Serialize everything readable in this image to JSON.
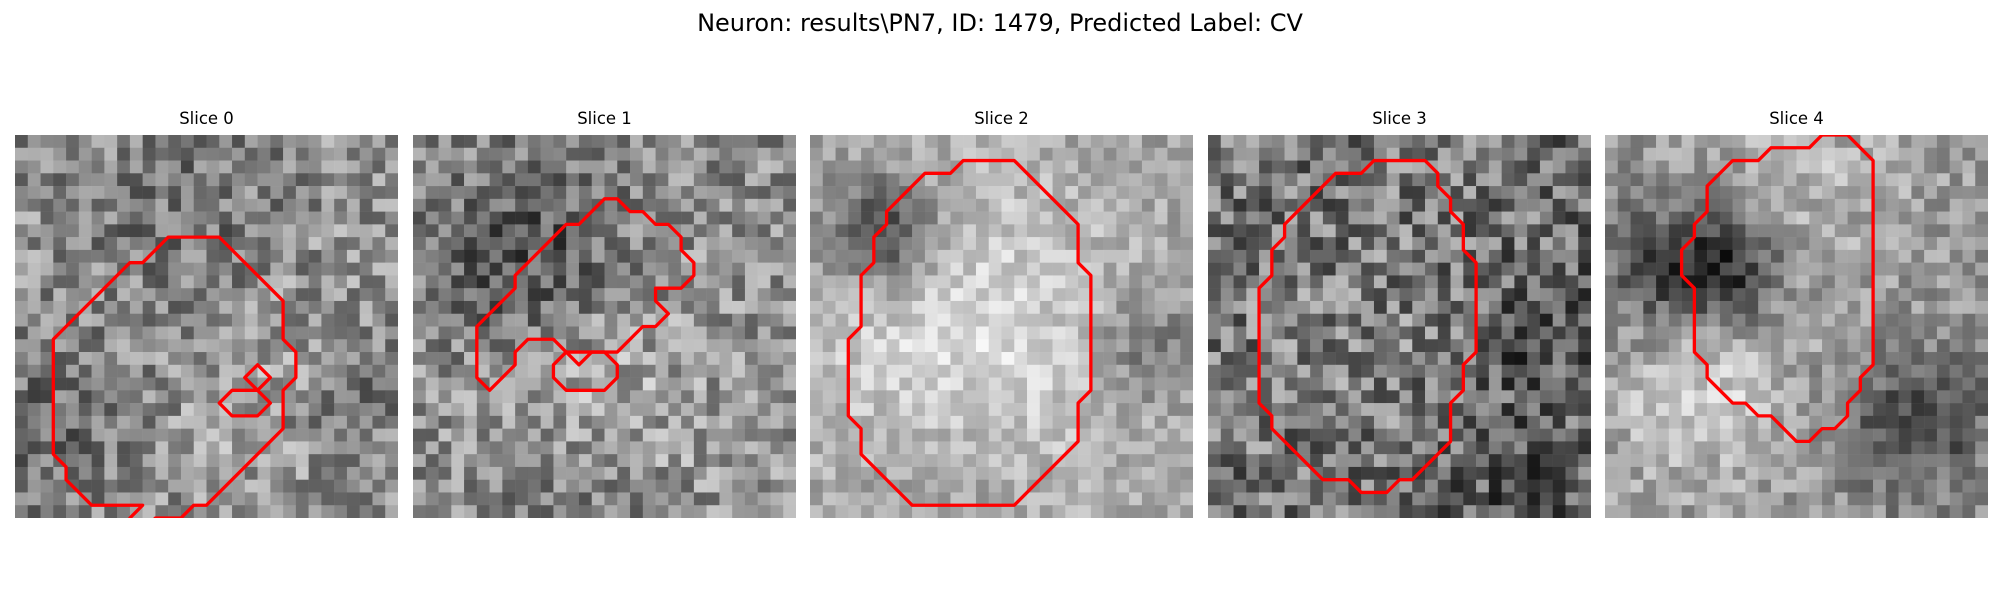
{
  "figure": {
    "title": "Neuron: results\\PN7, ID: 1479, Predicted Label: CV"
  },
  "slices": [
    {
      "title": "Slice 0",
      "contours": [
        "M10,29 L9,30 L9,31 L10,31 L11,30 L13,30 L14,29 L15,29 L16,28 L17,27 L18,26 L19,25 L20,24 L21,23 L21,20 L22,19 L22,17 L21,16 L21,13 L20,12 L19,11 L18,10 L17,9 L16,8 L12,8 L11,9 L10,10 L9,10 L8,11 L7,12 L6,13 L5,14 L4,15 L3,16 L3,25 L4,26 L4,27 L5,28 L6,29 Z",
        "M19,18 L18,19 L19,20 L20,19 Z",
        "M17,20 L16,21 L17,22 L19,22 L20,21 L19,20 Z"
      ]
    },
    {
      "title": "Slice 1",
      "contours": [
        "M11,8 L10,9 L9,10 L8,11 L8,12 L7,13 L6,14 L5,15 L5,19 L6,20 L7,19 L8,18 L8,17 L9,16 L11,16 L12,17 L16,17 L17,16 L18,15 L19,15 L20,14 L19,13 L19,12 L21,12 L22,11 L22,10 L21,9 L21,8 L20,7 L19,7 L18,6 L17,6 L16,5 L15,5 L14,6 L13,7 L12,7 L11,8 Z",
        "M12,17 L11,18 L11,19 L12,20 L15,20 L16,19 L16,18 L15,17 L14,17 L13,18 Z"
      ]
    },
    {
      "title": "Slice 2",
      "contours": [
        "M12,2 L11,3 L9,3 L8,4 L7,5 L6,6 L6,7 L5,8 L5,10 L4,11 L4,15 L3,16 L3,22 L4,23 L4,25 L5,26 L6,27 L7,28 L8,29 L16,29 L17,28 L18,27 L19,26 L20,25 L21,24 L21,21 L22,20 L22,11 L21,10 L21,7 L20,6 L19,5 L18,4 L17,3 L16,2 Z"
      ]
    },
    {
      "title": "Slice 3",
      "contours": [
        "M13,2 L12,3 L10,3 L9,4 L8,5 L7,6 L6,7 L6,8 L5,9 L5,11 L4,12 L4,21 L5,22 L5,23 L6,24 L7,25 L8,26 L9,27 L11,27 L12,28 L14,28 L15,27 L16,27 L17,26 L18,25 L19,24 L19,21 L20,20 L20,18 L21,17 L21,10 L20,9 L20,7 L19,6 L19,5 L18,4 L18,3 L17,2 Z"
      ]
    },
    {
      "title": "Slice 4",
      "contours": [
        "M17,0 L16,1 L13,1 L12,2 L10,2 L9,3 L8,4 L8,6 L7,7 L7,8 L6,9 L6,11 L7,12 L7,17 L8,18 L8,19 L9,20 L10,21 L11,21 L12,22 L13,22 L14,23 L15,24 L16,24 L17,23 L18,23 L19,22 L19,21 L20,20 L20,19 L21,18 L21,2 L20,1 L19,0 L18,0 Z"
      ]
    }
  ]
}
